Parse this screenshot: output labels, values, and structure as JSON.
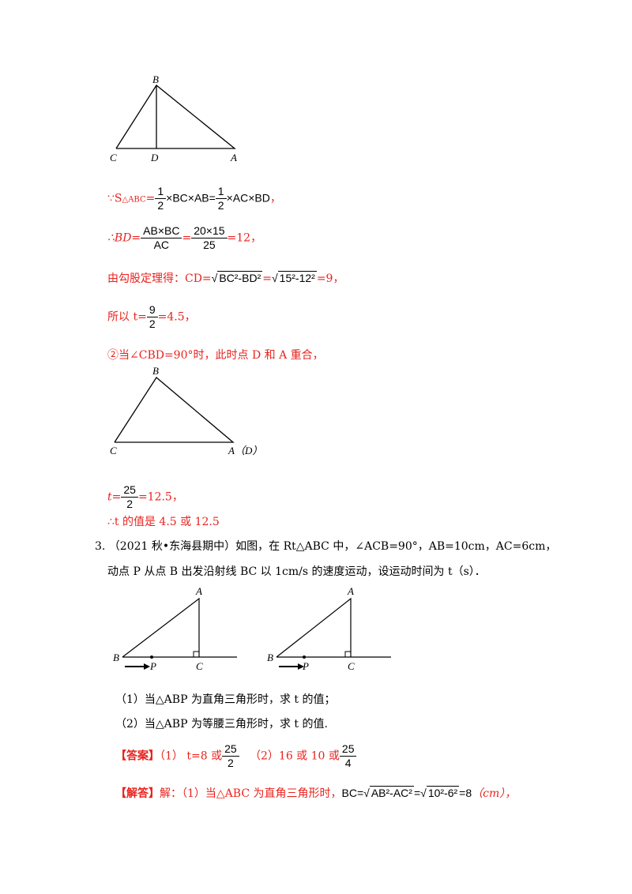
{
  "fig1": {
    "B": "B",
    "C": "C",
    "D": "D",
    "A": "A"
  },
  "line1": {
    "prefix": "∵S",
    "sub": "△ABC",
    "eq": "=",
    "half": "1",
    "two": "2",
    "mid1": "×BC×AB=",
    "mid2": "×AC×BD",
    "end": "，"
  },
  "line2": {
    "prefix": "∴BD=",
    "num1": "AB×BC",
    "den1": "AC",
    "eq": "=",
    "num2": "20×15",
    "den2": "25",
    "end": "=12，"
  },
  "line3": {
    "prefix": "由勾股定理得：CD=",
    "r1": "BC²-BD²",
    "eq": "=",
    "r2": "15²-12²",
    "end": "=9，"
  },
  "line4": {
    "prefix": "所以 t=",
    "num": "9",
    "den": "2",
    "end": "=4.5，"
  },
  "line5": {
    "text": "②当∠CBD=90°时，此时点 D 和 A 重合，"
  },
  "fig2": {
    "B": "B",
    "C": "C",
    "AD": "A（D）"
  },
  "line6": {
    "prefix": "t=",
    "num": "25",
    "den": "2",
    "end": "=12.5，"
  },
  "line7": {
    "text": "∴t 的值是 4.5 或 12.5"
  },
  "q3": {
    "line1": "3. （2021 秋•东海县期中）如图，在 Rt△ABC 中，∠ACB=90°，AB=10cm，AC=6cm，",
    "line2": "动点 P 从点 B 出发沿射线 BC 以 1cm/s 的速度运动，设运动时间为 t（s）．"
  },
  "fig3": {
    "A": "A",
    "B": "B",
    "P": "P",
    "C": "C"
  },
  "fig4": {
    "A": "A",
    "B": "B",
    "P": "P",
    "C": "C"
  },
  "sub1": "（1）当△ABP 为直角三角形时，求 t 的值；",
  "sub2": "（2）当△ABP 为等腰三角形时，求 t 的值.",
  "answer": {
    "tag": "【答案】",
    "p1": "（1） t=8 或",
    "n1": "25",
    "d1": "2",
    "p2": "（2）16 或 10 或",
    "n2": "25",
    "d2": "4"
  },
  "solution": {
    "tag": "【解答】",
    "p1": "解：（1）当△ABC 为直角三角形时，",
    "bc": "BC=",
    "r1": "AB²-AC²",
    "eq": "=",
    "r2": "10²-6²",
    "res": "=8",
    "unit": "（cm），"
  }
}
